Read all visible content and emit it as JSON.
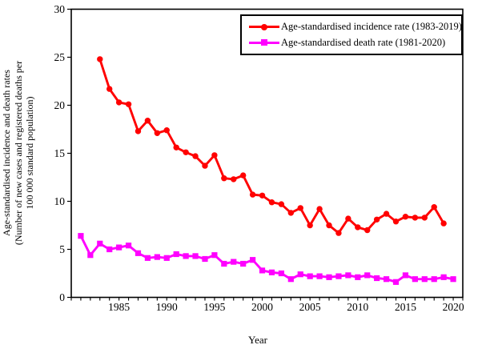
{
  "chart_data": {
    "type": "line",
    "title": "",
    "xlabel": "Year",
    "ylabel_lines": [
      "Age-standardised incidence and death rates",
      "(Number of new cases and registered deaths per",
      "100 000 standard population)"
    ],
    "x_axis": {
      "min": 1980,
      "max": 2021,
      "minor_tick_interval": 1,
      "tick_labels": [
        1985,
        1990,
        1995,
        2000,
        2005,
        2010,
        2015,
        2020
      ]
    },
    "y_axis": {
      "min": 0,
      "max": 30,
      "tick_interval": 5,
      "tick_labels": [
        0,
        5,
        10,
        15,
        20,
        25,
        30
      ]
    },
    "grid": false,
    "legend_position": "top-right-inside",
    "series": [
      {
        "id": "incidence",
        "name": "Age-standardised incidence rate (1983-2019)",
        "color": "#FF0000",
        "marker": "circle",
        "years": [
          1983,
          1984,
          1985,
          1986,
          1987,
          1988,
          1989,
          1990,
          1991,
          1992,
          1993,
          1994,
          1995,
          1996,
          1997,
          1998,
          1999,
          2000,
          2001,
          2002,
          2003,
          2004,
          2005,
          2006,
          2007,
          2008,
          2009,
          2010,
          2011,
          2012,
          2013,
          2014,
          2015,
          2016,
          2017,
          2018,
          2019
        ],
        "values": [
          24.8,
          21.7,
          20.3,
          20.1,
          17.3,
          18.4,
          17.1,
          17.4,
          15.6,
          15.1,
          14.7,
          13.7,
          14.8,
          12.4,
          12.3,
          12.7,
          10.7,
          10.6,
          9.9,
          9.7,
          8.8,
          9.3,
          7.5,
          9.2,
          7.5,
          6.7,
          8.2,
          7.3,
          7.0,
          8.1,
          8.7,
          7.9,
          8.4,
          8.3,
          8.3,
          9.4,
          7.7
        ]
      },
      {
        "id": "death",
        "name": "Age-standardised death rate (1981-2020)",
        "color": "#FF00FF",
        "marker": "square",
        "years": [
          1981,
          1982,
          1983,
          1984,
          1985,
          1986,
          1987,
          1988,
          1989,
          1990,
          1991,
          1992,
          1993,
          1994,
          1995,
          1996,
          1997,
          1998,
          1999,
          2000,
          2001,
          2002,
          2003,
          2004,
          2005,
          2006,
          2007,
          2008,
          2009,
          2010,
          2011,
          2012,
          2013,
          2014,
          2015,
          2016,
          2017,
          2018,
          2019,
          2020
        ],
        "values": [
          6.4,
          4.4,
          5.6,
          5.0,
          5.2,
          5.4,
          4.6,
          4.1,
          4.2,
          4.1,
          4.5,
          4.3,
          4.3,
          4.0,
          4.4,
          3.5,
          3.7,
          3.5,
          3.9,
          2.8,
          2.6,
          2.5,
          1.9,
          2.4,
          2.2,
          2.2,
          2.1,
          2.2,
          2.3,
          2.1,
          2.3,
          2.0,
          1.9,
          1.6,
          2.3,
          1.9,
          1.9,
          1.9,
          2.1,
          1.9
        ]
      }
    ]
  }
}
